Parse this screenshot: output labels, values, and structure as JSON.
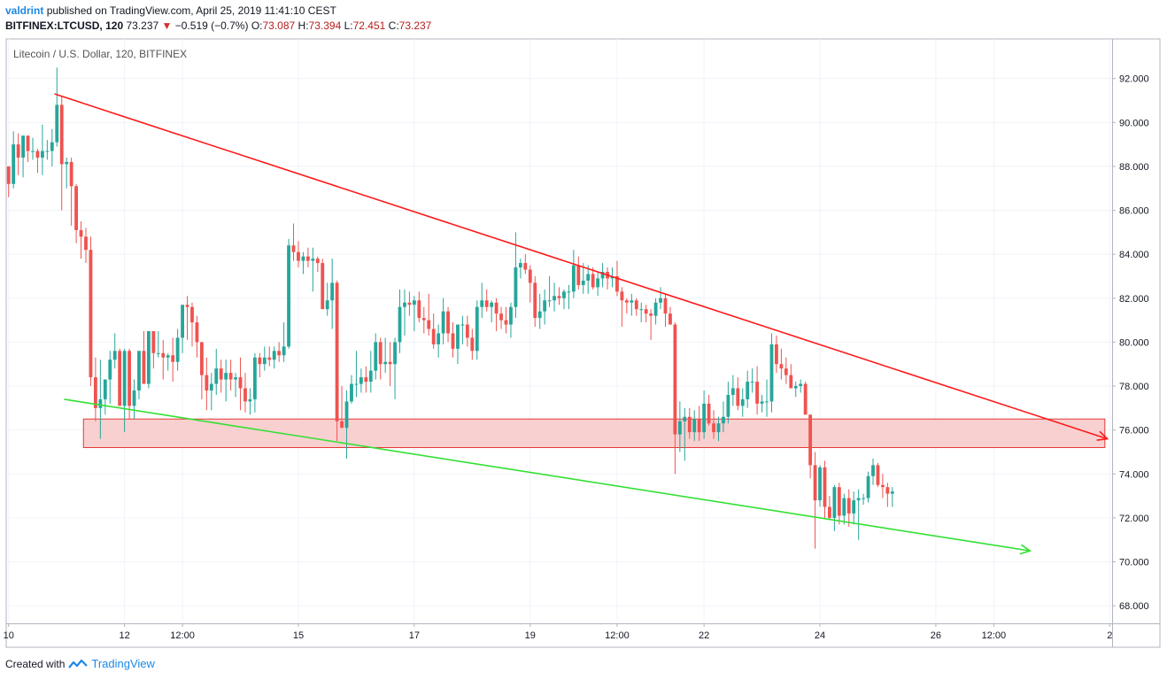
{
  "header": {
    "user": "valdrint",
    "published_text": "published on TradingView.com, April 25, 2019 11:41:10 CEST",
    "symbol": "BITFINEX:LTCUSD, 120",
    "last": "73.237",
    "change": "−0.519 (−0.7%)",
    "o_label": "O:",
    "o": "73.087",
    "h_label": "H:",
    "h": "73.394",
    "l_label": "L:",
    "l": "72.451",
    "c_label": "C:",
    "c": "73.237"
  },
  "footer": {
    "created_with": "Created with",
    "brand": "TradingView"
  },
  "colors": {
    "up": "#26a69a",
    "down": "#ef5350",
    "resistance": "#ff1a1a",
    "support": "#33e033",
    "zone_fill": "#f8c8c8",
    "zone_border": "#e53935",
    "grid": "#f0f3fa"
  },
  "chart_data": {
    "type": "candlestick",
    "title": "Litecoin / U.S. Dollar, 120, BITFINEX",
    "y_ticks": [
      "92.000",
      "90.000",
      "88.000",
      "86.000",
      "84.000",
      "82.000",
      "80.000",
      "78.000",
      "76.000",
      "74.000",
      "72.000",
      "70.000",
      "68.000"
    ],
    "ylim": [
      67.2,
      93.8
    ],
    "x_ticks": [
      {
        "label": "10",
        "t": 0
      },
      {
        "label": "12",
        "t": 24
      },
      {
        "label": "12:00",
        "t": 36
      },
      {
        "label": "15",
        "t": 60
      },
      {
        "label": "17",
        "t": 84
      },
      {
        "label": "19",
        "t": 108
      },
      {
        "label": "12:00",
        "t": 126
      },
      {
        "label": "22",
        "t": 144
      },
      {
        "label": "24",
        "t": 168
      },
      {
        "label": "26",
        "t": 192
      },
      {
        "label": "12:00",
        "t": 204
      },
      {
        "label": "2",
        "t": 228
      }
    ],
    "xlim": [
      -0.5,
      228.5
    ],
    "candles_ohlc": [
      [
        88.0,
        88.0,
        86.6,
        87.2
      ],
      [
        87.2,
        89.6,
        87.0,
        89.0
      ],
      [
        89.0,
        89.5,
        87.6,
        88.4
      ],
      [
        88.4,
        89.4,
        87.5,
        89.4
      ],
      [
        89.4,
        89.4,
        88.2,
        88.7
      ],
      [
        88.7,
        89.3,
        88.3,
        88.7
      ],
      [
        88.7,
        88.8,
        87.7,
        88.4
      ],
      [
        88.4,
        89.9,
        87.6,
        88.7
      ],
      [
        88.7,
        89.2,
        88.3,
        88.7
      ],
      [
        88.7,
        89.7,
        88.0,
        89.1
      ],
      [
        89.1,
        92.5,
        88.9,
        90.8
      ],
      [
        90.8,
        91.2,
        86.0,
        88.1
      ],
      [
        88.1,
        88.4,
        87.0,
        88.2
      ],
      [
        88.2,
        88.4,
        85.3,
        87.1
      ],
      [
        87.1,
        87.2,
        84.5,
        85.1
      ],
      [
        85.1,
        85.5,
        83.8,
        84.8
      ],
      [
        84.8,
        85.2,
        83.6,
        84.2
      ],
      [
        84.2,
        84.8,
        78.0,
        78.4
      ],
      [
        78.4,
        79.3,
        76.4,
        77.0
      ],
      [
        77.0,
        79.2,
        75.6,
        77.4
      ],
      [
        77.4,
        78.2,
        76.7,
        78.3
      ],
      [
        78.3,
        79.6,
        77.2,
        79.2
      ],
      [
        79.2,
        80.4,
        78.8,
        79.6
      ],
      [
        79.6,
        79.7,
        77.1,
        77.1
      ],
      [
        77.1,
        79.7,
        75.9,
        79.6
      ],
      [
        79.6,
        79.7,
        76.5,
        77.1
      ],
      [
        77.1,
        78.3,
        76.5,
        77.8
      ],
      [
        77.8,
        79.6,
        77.4,
        79.6
      ],
      [
        79.6,
        80.5,
        78.2,
        78.1
      ],
      [
        78.1,
        80.3,
        77.9,
        80.5
      ],
      [
        80.5,
        80.5,
        78.8,
        79.5
      ],
      [
        79.5,
        80.5,
        79.3,
        79.5
      ],
      [
        79.5,
        80.1,
        78.3,
        79.3
      ],
      [
        79.3,
        79.5,
        78.7,
        79.4
      ],
      [
        79.4,
        80.2,
        78.2,
        79.1
      ],
      [
        79.1,
        80.6,
        78.7,
        80.2
      ],
      [
        80.2,
        81.2,
        79.5,
        81.7
      ],
      [
        81.7,
        82.1,
        80.1,
        81.6
      ],
      [
        81.6,
        81.8,
        79.8,
        80.9
      ],
      [
        80.9,
        81.2,
        79.3,
        80.0
      ],
      [
        80.0,
        80.0,
        77.4,
        78.5
      ],
      [
        78.5,
        79.3,
        76.9,
        77.8
      ],
      [
        77.8,
        78.6,
        76.9,
        78.1
      ],
      [
        78.1,
        79.7,
        77.6,
        78.8
      ],
      [
        78.8,
        79.2,
        77.7,
        78.3
      ],
      [
        78.3,
        79.2,
        77.3,
        78.6
      ],
      [
        78.6,
        79.2,
        77.8,
        78.3
      ],
      [
        78.3,
        78.6,
        77.5,
        78.4
      ],
      [
        78.4,
        79.3,
        76.9,
        77.9
      ],
      [
        77.9,
        78.6,
        76.8,
        77.3
      ],
      [
        77.3,
        77.9,
        76.7,
        77.4
      ],
      [
        77.4,
        79.5,
        76.8,
        79.3
      ],
      [
        79.3,
        79.5,
        78.4,
        79.0
      ],
      [
        79.0,
        79.8,
        78.7,
        79.3
      ],
      [
        79.3,
        79.8,
        78.9,
        79.2
      ],
      [
        79.2,
        79.8,
        78.8,
        79.6
      ],
      [
        79.6,
        80.0,
        79.1,
        79.4
      ],
      [
        79.4,
        80.9,
        79.1,
        79.8
      ],
      [
        79.8,
        84.7,
        79.7,
        84.4
      ],
      [
        84.4,
        85.4,
        83.7,
        84.1
      ],
      [
        84.1,
        84.6,
        83.4,
        83.7
      ],
      [
        83.7,
        84.1,
        83.1,
        83.9
      ],
      [
        83.9,
        84.3,
        83.4,
        83.7
      ],
      [
        83.7,
        84.3,
        82.3,
        83.8
      ],
      [
        83.8,
        83.9,
        83.2,
        83.6
      ],
      [
        83.6,
        83.8,
        81.8,
        81.5
      ],
      [
        81.5,
        82.7,
        81.2,
        81.9
      ],
      [
        81.9,
        83.8,
        80.6,
        82.7
      ],
      [
        82.7,
        82.8,
        75.5,
        76.4
      ],
      [
        76.4,
        78.0,
        76.1,
        76.1
      ],
      [
        76.1,
        77.8,
        74.7,
        77.3
      ],
      [
        77.3,
        78.5,
        77.2,
        78.1
      ],
      [
        78.1,
        79.6,
        77.5,
        78.1
      ],
      [
        78.1,
        78.8,
        77.7,
        78.4
      ],
      [
        78.4,
        78.9,
        77.7,
        78.2
      ],
      [
        78.2,
        79.6,
        77.7,
        78.7
      ],
      [
        78.7,
        80.4,
        78.3,
        80.0
      ],
      [
        80.0,
        80.2,
        78.3,
        79.0
      ],
      [
        79.0,
        80.2,
        78.6,
        79.1
      ],
      [
        79.1,
        80.0,
        78.0,
        79.0
      ],
      [
        79.0,
        80.2,
        77.4,
        80.0
      ],
      [
        80.0,
        82.4,
        79.5,
        81.6
      ],
      [
        81.6,
        82.4,
        80.3,
        81.8
      ],
      [
        81.8,
        82.3,
        81.2,
        81.7
      ],
      [
        81.7,
        82.1,
        80.5,
        81.9
      ],
      [
        81.9,
        82.3,
        80.9,
        81.1
      ],
      [
        81.1,
        81.6,
        80.4,
        81.0
      ],
      [
        81.0,
        82.2,
        80.3,
        80.6
      ],
      [
        80.6,
        81.3,
        79.7,
        79.9
      ],
      [
        79.9,
        80.8,
        79.3,
        80.4
      ],
      [
        80.4,
        82.0,
        79.9,
        81.4
      ],
      [
        81.4,
        81.6,
        80.0,
        80.4
      ],
      [
        80.4,
        80.9,
        79.3,
        79.7
      ],
      [
        79.7,
        80.8,
        79.0,
        80.8
      ],
      [
        80.8,
        81.2,
        79.9,
        80.8
      ],
      [
        80.8,
        81.2,
        79.8,
        80.2
      ],
      [
        80.2,
        80.6,
        79.2,
        79.6
      ],
      [
        79.6,
        81.9,
        79.2,
        81.6
      ],
      [
        81.6,
        82.7,
        81.1,
        81.9
      ],
      [
        81.9,
        82.4,
        81.4,
        81.6
      ],
      [
        81.6,
        81.9,
        80.9,
        81.8
      ],
      [
        81.8,
        82.0,
        80.5,
        81.3
      ],
      [
        81.3,
        81.6,
        80.6,
        81.0
      ],
      [
        81.0,
        81.6,
        80.4,
        80.8
      ],
      [
        80.8,
        81.8,
        80.2,
        81.6
      ],
      [
        81.6,
        85.0,
        81.1,
        83.4
      ],
      [
        83.4,
        83.8,
        82.9,
        83.6
      ],
      [
        83.6,
        84.0,
        83.1,
        83.3
      ],
      [
        83.3,
        83.5,
        81.8,
        82.7
      ],
      [
        82.7,
        83.0,
        80.7,
        81.1
      ],
      [
        81.1,
        82.2,
        80.6,
        81.4
      ],
      [
        81.4,
        82.4,
        80.8,
        81.9
      ],
      [
        81.9,
        83.0,
        81.6,
        81.9
      ],
      [
        81.9,
        82.7,
        81.4,
        82.1
      ],
      [
        82.1,
        82.5,
        81.7,
        82.0
      ],
      [
        82.0,
        82.4,
        81.5,
        82.3
      ],
      [
        82.3,
        82.6,
        81.5,
        82.3
      ],
      [
        82.3,
        84.2,
        82.0,
        83.5
      ],
      [
        83.5,
        83.9,
        82.4,
        82.6
      ],
      [
        82.6,
        83.6,
        82.2,
        82.8
      ],
      [
        82.8,
        83.5,
        82.2,
        83.1
      ],
      [
        83.1,
        83.4,
        82.4,
        82.5
      ],
      [
        82.5,
        83.2,
        82.1,
        82.9
      ],
      [
        82.9,
        83.6,
        82.5,
        83.2
      ],
      [
        83.2,
        83.4,
        82.4,
        82.9
      ],
      [
        82.9,
        83.4,
        82.5,
        83.0
      ],
      [
        83.0,
        83.7,
        82.1,
        82.3
      ],
      [
        82.3,
        82.5,
        80.7,
        81.9
      ],
      [
        81.9,
        82.0,
        81.3,
        81.8
      ],
      [
        81.8,
        82.2,
        81.2,
        81.9
      ],
      [
        81.9,
        82.0,
        81.2,
        81.5
      ],
      [
        81.5,
        81.8,
        80.9,
        81.5
      ],
      [
        81.5,
        81.7,
        80.9,
        81.3
      ],
      [
        81.3,
        81.5,
        80.1,
        81.2
      ],
      [
        81.2,
        82.0,
        80.8,
        81.8
      ],
      [
        81.8,
        82.5,
        81.5,
        82.0
      ],
      [
        82.0,
        82.2,
        80.7,
        81.3
      ],
      [
        81.3,
        81.6,
        80.8,
        80.8
      ],
      [
        80.8,
        80.9,
        74.0,
        75.8
      ],
      [
        75.8,
        77.3,
        75.0,
        76.4
      ],
      [
        76.4,
        77.0,
        74.6,
        76.6
      ],
      [
        76.6,
        77.0,
        75.6,
        75.9
      ],
      [
        75.9,
        76.9,
        75.5,
        76.5
      ],
      [
        76.5,
        77.1,
        75.5,
        75.9
      ],
      [
        75.9,
        77.8,
        75.6,
        77.2
      ],
      [
        77.2,
        77.6,
        76.2,
        76.3
      ],
      [
        76.3,
        76.9,
        75.6,
        75.9
      ],
      [
        75.9,
        76.6,
        75.5,
        76.3
      ],
      [
        76.3,
        77.3,
        75.9,
        76.6
      ],
      [
        76.6,
        78.2,
        76.3,
        77.6
      ],
      [
        77.6,
        78.5,
        77.1,
        77.9
      ],
      [
        77.9,
        78.4,
        76.9,
        77.1
      ],
      [
        77.1,
        77.9,
        76.6,
        77.4
      ],
      [
        77.4,
        78.7,
        77.0,
        78.2
      ],
      [
        78.2,
        78.8,
        77.7,
        78.2
      ],
      [
        78.2,
        78.9,
        76.7,
        77.2
      ],
      [
        77.2,
        77.6,
        76.8,
        77.3
      ],
      [
        77.3,
        78.3,
        76.6,
        77.3
      ],
      [
        77.3,
        80.4,
        76.8,
        79.9
      ],
      [
        79.9,
        80.3,
        78.6,
        79.0
      ],
      [
        79.0,
        79.7,
        78.3,
        78.8
      ],
      [
        78.8,
        79.3,
        78.1,
        78.5
      ],
      [
        78.5,
        79.0,
        78.0,
        77.9
      ],
      [
        77.9,
        78.2,
        77.5,
        78.0
      ],
      [
        78.0,
        78.3,
        77.7,
        78.1
      ],
      [
        78.1,
        78.2,
        76.7,
        76.7
      ],
      [
        76.7,
        76.7,
        73.8,
        74.4
      ],
      [
        74.4,
        75.0,
        70.6,
        72.8
      ],
      [
        72.8,
        74.4,
        72.5,
        74.3
      ],
      [
        74.3,
        74.6,
        72.0,
        72.5
      ],
      [
        72.5,
        73.0,
        71.9,
        72.0
      ],
      [
        72.0,
        73.5,
        71.4,
        73.4
      ],
      [
        73.4,
        73.6,
        71.7,
        72.1
      ],
      [
        72.1,
        73.1,
        71.7,
        72.9
      ],
      [
        72.9,
        73.3,
        71.6,
        72.2
      ],
      [
        72.2,
        73.2,
        71.7,
        72.8
      ],
      [
        72.8,
        73.3,
        71.0,
        72.9
      ],
      [
        72.9,
        73.1,
        72.6,
        72.9
      ],
      [
        72.9,
        74.1,
        72.7,
        73.9
      ],
      [
        73.9,
        74.7,
        73.5,
        74.4
      ],
      [
        74.4,
        74.5,
        73.4,
        73.5
      ],
      [
        73.5,
        74.0,
        72.9,
        73.4
      ],
      [
        73.4,
        73.6,
        72.5,
        73.1
      ],
      [
        73.1,
        73.4,
        72.5,
        73.2
      ]
    ],
    "trendlines": [
      {
        "name": "resistance",
        "t": [
          9.5,
          227.5
        ],
        "y": [
          91.3,
          75.6
        ],
        "arrow": true
      },
      {
        "name": "support",
        "t": [
          11.5,
          211.5
        ],
        "y": [
          77.4,
          70.5
        ],
        "arrow": true
      }
    ],
    "zone": {
      "t": [
        15.5,
        227
      ],
      "y": [
        75.2,
        76.5
      ]
    }
  }
}
